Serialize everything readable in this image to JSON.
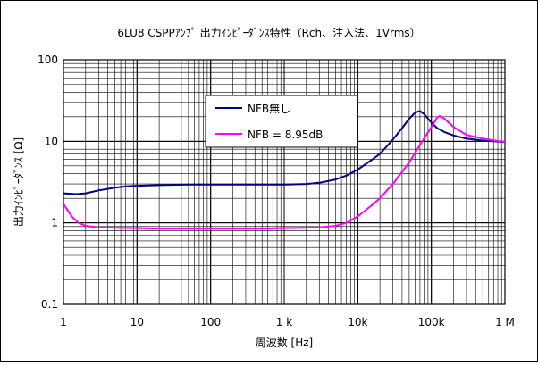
{
  "chart_data": {
    "type": "line",
    "title": "6LU8 CSPPｱﾝﾌﾟ 出力ｲﾝﾋﾟｰﾀﾞﾝｽ特性（Rch、注入法、1Vrms）",
    "xlabel": "周波数 [Hz]",
    "ylabel": "出力ｲﾝﾋﾟｰﾀﾞﾝｽ [Ω]",
    "x_scale": "log",
    "y_scale": "log",
    "xlim": [
      1,
      1000000
    ],
    "ylim": [
      0.1,
      100
    ],
    "x_ticks": [
      {
        "value": 1,
        "label": "1"
      },
      {
        "value": 10,
        "label": "10"
      },
      {
        "value": 100,
        "label": "100"
      },
      {
        "value": 1000,
        "label": "1 k"
      },
      {
        "value": 10000,
        "label": "10k"
      },
      {
        "value": 100000,
        "label": "100k"
      },
      {
        "value": 1000000,
        "label": "1 M"
      }
    ],
    "y_ticks": [
      {
        "value": 0.1,
        "label": "0.1"
      },
      {
        "value": 1,
        "label": "1"
      },
      {
        "value": 10,
        "label": "10"
      },
      {
        "value": 100,
        "label": "100"
      }
    ],
    "grid": true,
    "legend_position": "top-center",
    "series": [
      {
        "name": "NFB無し",
        "color": "#000080",
        "points": [
          [
            1,
            2.3
          ],
          [
            1.5,
            2.25
          ],
          [
            2,
            2.3
          ],
          [
            3,
            2.5
          ],
          [
            5,
            2.7
          ],
          [
            7,
            2.8
          ],
          [
            10,
            2.85
          ],
          [
            20,
            2.9
          ],
          [
            50,
            2.95
          ],
          [
            100,
            2.95
          ],
          [
            200,
            2.95
          ],
          [
            500,
            2.95
          ],
          [
            1000,
            2.95
          ],
          [
            2000,
            3.0
          ],
          [
            3000,
            3.1
          ],
          [
            5000,
            3.4
          ],
          [
            7000,
            3.8
          ],
          [
            10000,
            4.5
          ],
          [
            15000,
            5.8
          ],
          [
            20000,
            7.0
          ],
          [
            30000,
            10.5
          ],
          [
            40000,
            14.5
          ],
          [
            50000,
            19
          ],
          [
            60000,
            22.5
          ],
          [
            70000,
            23.5
          ],
          [
            80000,
            21.5
          ],
          [
            100000,
            17
          ],
          [
            120000,
            14.5
          ],
          [
            150000,
            13
          ],
          [
            200000,
            11.8
          ],
          [
            300000,
            10.8
          ],
          [
            500000,
            10.2
          ],
          [
            700000,
            10
          ],
          [
            1000000,
            9.8
          ]
        ]
      },
      {
        "name": "NFB = 8.95dB",
        "color": "#ff00ff",
        "points": [
          [
            1,
            1.7
          ],
          [
            1.3,
            1.2
          ],
          [
            1.6,
            1.0
          ],
          [
            2,
            0.92
          ],
          [
            3,
            0.88
          ],
          [
            5,
            0.87
          ],
          [
            10,
            0.86
          ],
          [
            20,
            0.85
          ],
          [
            50,
            0.85
          ],
          [
            100,
            0.85
          ],
          [
            200,
            0.85
          ],
          [
            500,
            0.85
          ],
          [
            1000,
            0.86
          ],
          [
            2000,
            0.87
          ],
          [
            3000,
            0.88
          ],
          [
            5000,
            0.92
          ],
          [
            7000,
            1.0
          ],
          [
            10000,
            1.2
          ],
          [
            15000,
            1.6
          ],
          [
            20000,
            2.0
          ],
          [
            30000,
            3.0
          ],
          [
            50000,
            5.5
          ],
          [
            70000,
            9.0
          ],
          [
            100000,
            15
          ],
          [
            120000,
            19.5
          ],
          [
            130000,
            20.5
          ],
          [
            150000,
            19
          ],
          [
            200000,
            15
          ],
          [
            300000,
            12
          ],
          [
            500000,
            10.8
          ],
          [
            700000,
            10.3
          ],
          [
            1000000,
            9.8
          ]
        ]
      }
    ]
  }
}
